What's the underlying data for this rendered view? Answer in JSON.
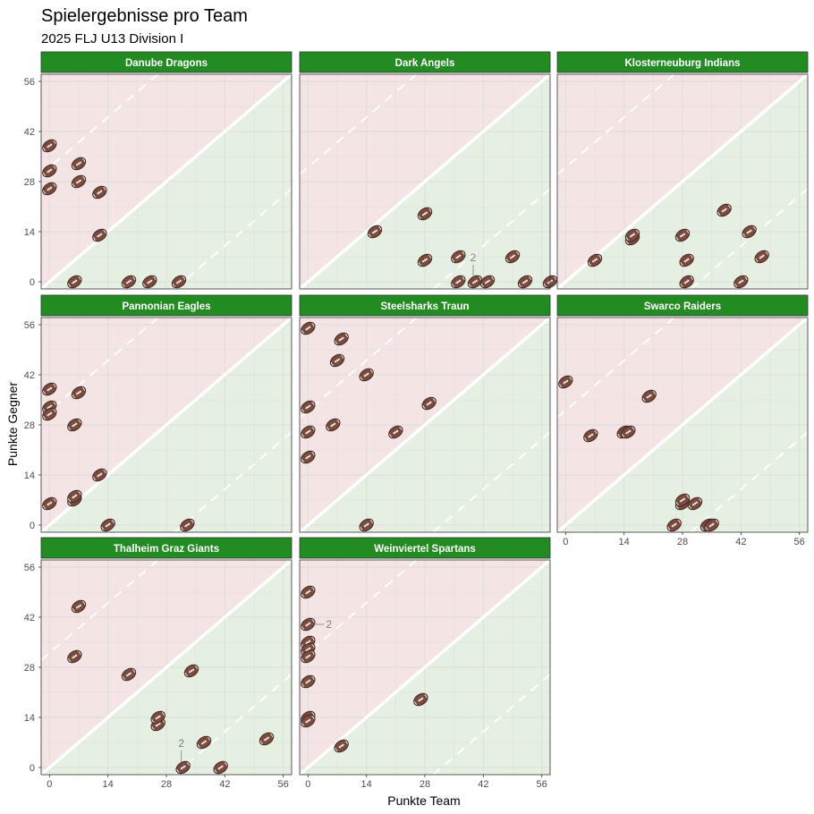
{
  "title": "Spielergebnisse pro Team",
  "subtitle": "2025 FLJ U13 Division I",
  "colors": {
    "strip": "#228B22",
    "lose_region": "#f5e4e4",
    "win_region": "#e5f0e3",
    "ball": "#7a4a3e",
    "grid": "#dcdcdc"
  },
  "chart_data": {
    "type": "scatter",
    "facet_by": "team",
    "xlabel": "Punkte Team",
    "ylabel": "Punkte Gegner",
    "xlim": [
      -2,
      58
    ],
    "ylim": [
      -2,
      58
    ],
    "ticks": [
      0,
      14,
      28,
      42,
      56
    ],
    "grid": true,
    "marker": "football",
    "reference_lines": [
      "y = x",
      "y = x + 32",
      "y = x - 32"
    ],
    "panels": [
      {
        "team": "Danube Dragons",
        "points": [
          {
            "x": 0,
            "y": 38
          },
          {
            "x": 0,
            "y": 31
          },
          {
            "x": 0,
            "y": 26
          },
          {
            "x": 7,
            "y": 33
          },
          {
            "x": 7,
            "y": 28
          },
          {
            "x": 12,
            "y": 25
          },
          {
            "x": 12,
            "y": 13
          },
          {
            "x": 6,
            "y": 0
          },
          {
            "x": 19,
            "y": 0
          },
          {
            "x": 24,
            "y": 0
          },
          {
            "x": 31,
            "y": 0
          }
        ]
      },
      {
        "team": "Dark Angels",
        "points": [
          {
            "x": 16,
            "y": 14
          },
          {
            "x": 28,
            "y": 19
          },
          {
            "x": 28,
            "y": 6
          },
          {
            "x": 36,
            "y": 7
          },
          {
            "x": 40,
            "y": 0,
            "count": "2"
          },
          {
            "x": 43,
            "y": 0
          },
          {
            "x": 49,
            "y": 7
          },
          {
            "x": 52,
            "y": 0
          },
          {
            "x": 58,
            "y": 0
          },
          {
            "x": 36,
            "y": 0
          }
        ]
      },
      {
        "team": "Klosterneuburg Indians",
        "points": [
          {
            "x": 7,
            "y": 6
          },
          {
            "x": 16,
            "y": 12
          },
          {
            "x": 16,
            "y": 13
          },
          {
            "x": 28,
            "y": 13
          },
          {
            "x": 29,
            "y": 6
          },
          {
            "x": 29,
            "y": 0
          },
          {
            "x": 38,
            "y": 20
          },
          {
            "x": 44,
            "y": 14
          },
          {
            "x": 42,
            "y": 0
          },
          {
            "x": 47,
            "y": 7
          }
        ]
      },
      {
        "team": "Pannonian Eagles",
        "points": [
          {
            "x": 0,
            "y": 38
          },
          {
            "x": 0,
            "y": 33
          },
          {
            "x": 0,
            "y": 31
          },
          {
            "x": 7,
            "y": 37
          },
          {
            "x": 6,
            "y": 28
          },
          {
            "x": 12,
            "y": 14
          },
          {
            "x": 0,
            "y": 6
          },
          {
            "x": 6,
            "y": 7
          },
          {
            "x": 6,
            "y": 8
          },
          {
            "x": 14,
            "y": 0
          },
          {
            "x": 33,
            "y": 0
          }
        ]
      },
      {
        "team": "Steelsharks Traun",
        "points": [
          {
            "x": 0,
            "y": 55
          },
          {
            "x": 8,
            "y": 52
          },
          {
            "x": 7,
            "y": 46
          },
          {
            "x": 14,
            "y": 42
          },
          {
            "x": 0,
            "y": 33
          },
          {
            "x": 29,
            "y": 34
          },
          {
            "x": 0,
            "y": 26
          },
          {
            "x": 6,
            "y": 28
          },
          {
            "x": 21,
            "y": 26
          },
          {
            "x": 0,
            "y": 19
          },
          {
            "x": 14,
            "y": 0
          }
        ]
      },
      {
        "team": "Swarco Raiders",
        "points": [
          {
            "x": 0,
            "y": 40
          },
          {
            "x": 6,
            "y": 25
          },
          {
            "x": 14,
            "y": 26
          },
          {
            "x": 15,
            "y": 26
          },
          {
            "x": 20,
            "y": 36
          },
          {
            "x": 28,
            "y": 6
          },
          {
            "x": 28,
            "y": 7
          },
          {
            "x": 31,
            "y": 6
          },
          {
            "x": 26,
            "y": 0
          },
          {
            "x": 34,
            "y": 0
          },
          {
            "x": 35,
            "y": 0
          }
        ]
      },
      {
        "team": "Thalheim Graz Giants",
        "points": [
          {
            "x": 7,
            "y": 45
          },
          {
            "x": 6,
            "y": 31
          },
          {
            "x": 19,
            "y": 26
          },
          {
            "x": 34,
            "y": 27
          },
          {
            "x": 26,
            "y": 12
          },
          {
            "x": 26,
            "y": 14
          },
          {
            "x": 32,
            "y": 0,
            "count": "2"
          },
          {
            "x": 37,
            "y": 7
          },
          {
            "x": 41,
            "y": 0
          },
          {
            "x": 52,
            "y": 8
          }
        ]
      },
      {
        "team": "Weinviertel Spartans",
        "points": [
          {
            "x": 0,
            "y": 49
          },
          {
            "x": 0,
            "y": 40,
            "count": "2"
          },
          {
            "x": 0,
            "y": 35
          },
          {
            "x": 0,
            "y": 33
          },
          {
            "x": 0,
            "y": 31
          },
          {
            "x": 0,
            "y": 24
          },
          {
            "x": 0,
            "y": 14
          },
          {
            "x": 0,
            "y": 13
          },
          {
            "x": 8,
            "y": 6
          },
          {
            "x": 27,
            "y": 19
          }
        ]
      }
    ]
  }
}
